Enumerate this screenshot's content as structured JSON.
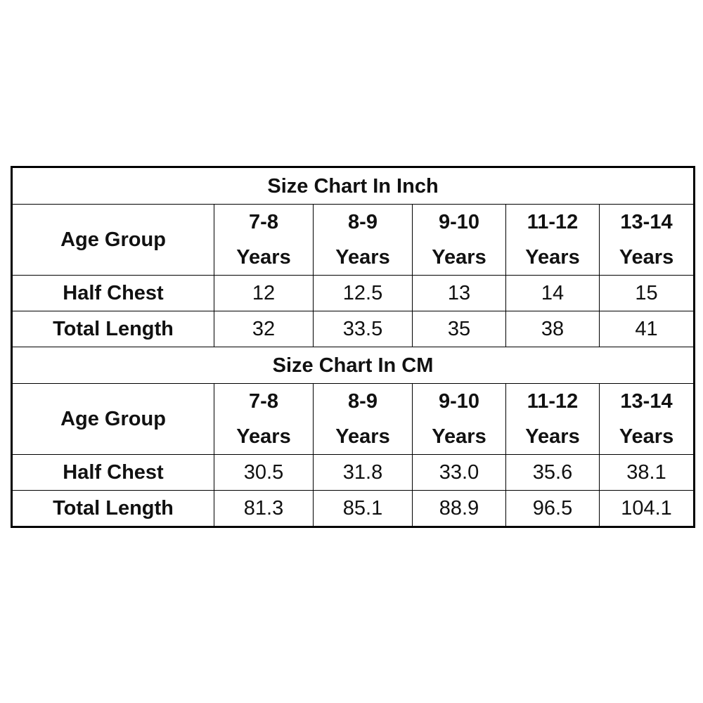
{
  "tables": [
    {
      "title": "Size Chart In Inch",
      "header": [
        "Age Group",
        "7-8 Years",
        "8-9 Years",
        "9-10 Years",
        "11-12 Years",
        "13-14 Years"
      ],
      "rows": [
        [
          "Half Chest",
          "12",
          "12.5",
          "13",
          "14",
          "15"
        ],
        [
          "Total Length",
          "32",
          "33.5",
          "35",
          "38",
          "41"
        ]
      ]
    },
    {
      "title": "Size Chart In CM",
      "header": [
        "Age Group",
        "7-8 Years",
        "8-9 Years",
        "9-10 Years",
        "11-12 Years",
        "13-14 Years"
      ],
      "rows": [
        [
          "Half Chest",
          "30.5",
          "31.8",
          "33.0",
          "35.6",
          "38.1"
        ],
        [
          "Total Length",
          "81.3",
          "85.1",
          "88.9",
          "96.5",
          "104.1"
        ]
      ]
    }
  ]
}
